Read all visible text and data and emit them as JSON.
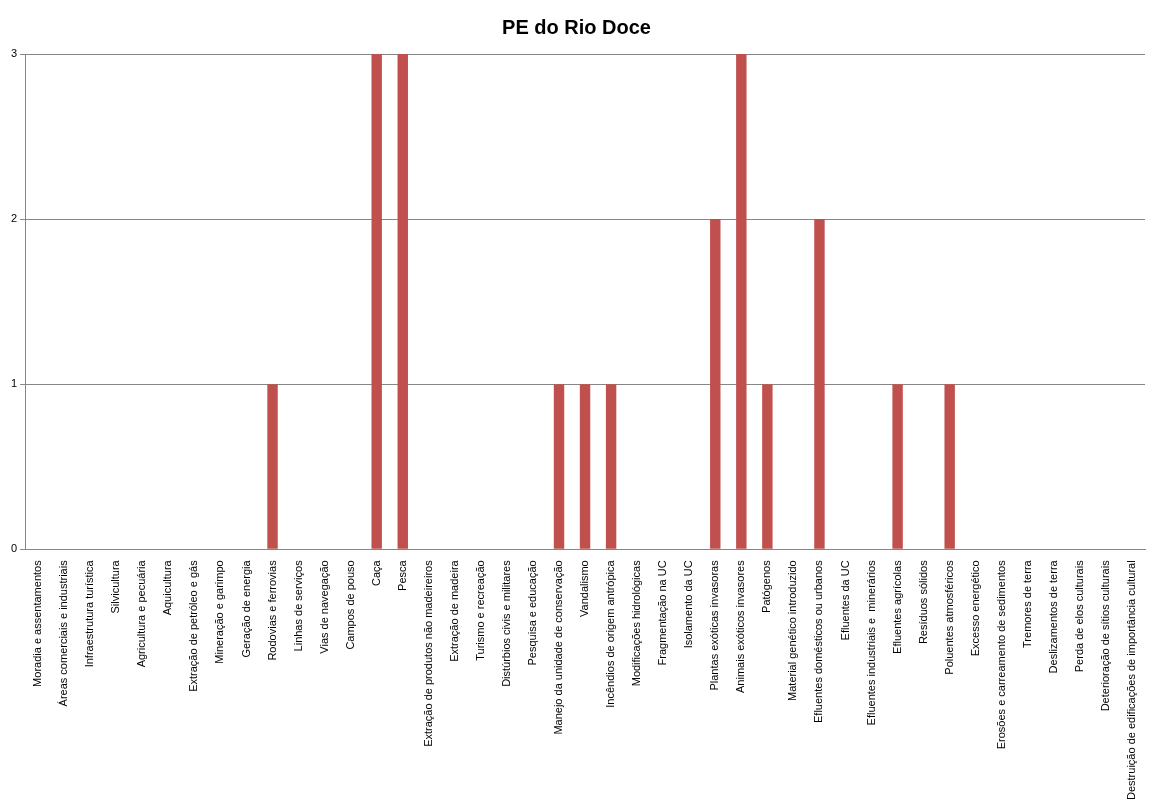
{
  "chart_data": {
    "type": "bar",
    "title": "PE do Rio Doce",
    "categories": [
      "Moradia e assentamentos",
      "Áreas comerciais e industriais",
      "Infraestrutura turística",
      "Silvicultura",
      "Agricultura e pecuária",
      "Aquicultura",
      "Extração de petróleo e gás",
      "Mineração e garimpo",
      "Geração de energia",
      "Rodovias e ferrovias",
      "Linhas de serviços",
      "Vias de navegação",
      "Campos de pouso",
      "Caça",
      "Pesca",
      "Extração de produtos não madeireiros",
      "Extração de madeira",
      "Turismo e recreação",
      "Distúrbios civis e militares",
      "Pesquisa e educação",
      "Manejo da unidade de conservação",
      "Vandalismo",
      "Incêndios de origem antrópica",
      "Modificações hidrológicas",
      "Fragmentação na UC",
      "Isolamento da UC",
      "Plantas exóticas invasoras",
      "Animais exóticos invasores",
      "Patógenos",
      "Material genético introduzido",
      "Efluentes domésticos ou urbanos",
      "Efluentes da UC",
      "Efluentes industriais e  minerários",
      "Efluentes agrícolas",
      "Resíduos sólidos",
      "Poluentes atmosféricos",
      "Excesso energético",
      "Erosões e carreamento de sedimentos",
      "Tremores de terra",
      "Deslizamentos de terra",
      "Perda de elos culturais",
      "Deterioração de sítios culturais",
      "Destruição de edificações de importância cultural"
    ],
    "values": [
      0,
      0,
      0,
      0,
      0,
      0,
      0,
      0,
      0,
      1,
      0,
      0,
      0,
      3,
      3,
      0,
      0,
      0,
      0,
      0,
      1,
      1,
      1,
      0,
      0,
      0,
      2,
      3,
      1,
      0,
      2,
      0,
      0,
      1,
      0,
      1,
      0,
      0,
      0,
      0,
      0,
      0,
      0
    ],
    "color": "#c0504d",
    "ylim": [
      0,
      3
    ],
    "yticks": [
      0,
      1,
      2,
      3
    ],
    "grid": "y"
  }
}
